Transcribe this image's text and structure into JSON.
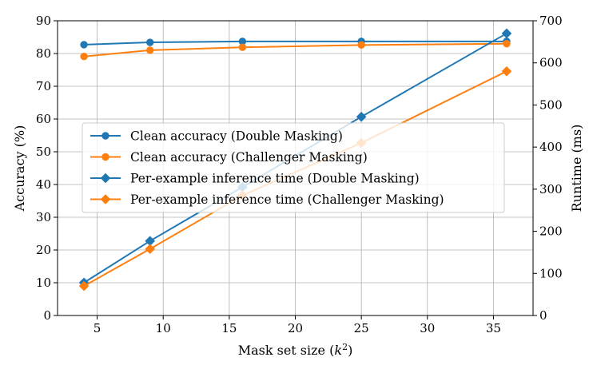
{
  "chart_data": {
    "type": "line",
    "x": [
      4,
      9,
      16,
      25,
      36
    ],
    "xlabel_prefix": "Mask set size (",
    "xlabel_var": "k",
    "xlabel_exp": "2",
    "xlabel_suffix": ")",
    "ylabel_left": "Accuracy (%)",
    "ylabel_right": "Runtime (ms)",
    "xlim": [
      2,
      38
    ],
    "ylim_left": [
      0,
      90
    ],
    "ylim_right": [
      0,
      700
    ],
    "xticks": [
      5,
      10,
      15,
      20,
      25,
      30,
      35
    ],
    "yticks_left": [
      0,
      10,
      20,
      30,
      40,
      50,
      60,
      70,
      80,
      90
    ],
    "yticks_right": [
      0,
      100,
      200,
      300,
      400,
      500,
      600,
      700
    ],
    "grid": true,
    "legend_placement": "center-left",
    "series": [
      {
        "name": "Clean accuracy (Double Masking)",
        "axis": "left",
        "marker": "circle",
        "color": "#1f77b4",
        "values": [
          82.7,
          83.4,
          83.7,
          83.7,
          83.7
        ]
      },
      {
        "name": "Clean accuracy (Challenger Masking)",
        "axis": "left",
        "marker": "circle",
        "color": "#ff7f0e",
        "values": [
          79.1,
          81.0,
          81.9,
          82.6,
          83.0
        ]
      },
      {
        "name": "Per-example inference time (Double Masking)",
        "axis": "right",
        "marker": "diamond",
        "color": "#1f77b4",
        "values": [
          78,
          177,
          305,
          472,
          670
        ]
      },
      {
        "name": "Per-example inference time (Challenger Masking)",
        "axis": "right",
        "marker": "diamond",
        "color": "#ff7f0e",
        "values": [
          70,
          158,
          285,
          410,
          580
        ]
      }
    ]
  }
}
